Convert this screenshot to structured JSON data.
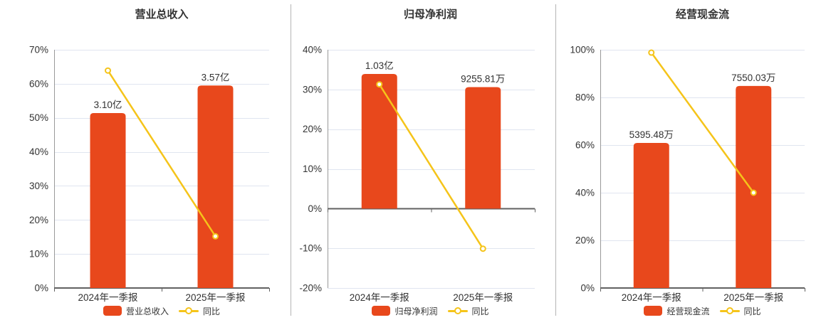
{
  "page": {
    "background": "#ffffff"
  },
  "colors": {
    "bar": "#e8481c",
    "line": "#f5c41a",
    "marker_fill": "#ffffff",
    "grid": "#e0e5f0",
    "zero_axis": "#616161",
    "y_axis_line": "#999999",
    "text": "#333333",
    "divider": "#b5b5b5"
  },
  "chart_data": [
    {
      "type": "bar",
      "title": "营业总收入",
      "categories": [
        "2024年一季报",
        "2025年一季报"
      ],
      "bar_series": {
        "name": "营业总收入",
        "display_values": [
          "3.10亿",
          "3.57亿"
        ],
        "top_on_percent_axis": [
          51.4,
          59.5
        ]
      },
      "line_series": {
        "name": "同比",
        "values_percent": [
          63.9,
          15.2
        ]
      },
      "y_axis": {
        "min": 0,
        "max": 70,
        "step": 10,
        "unit": "%"
      },
      "grid": true,
      "legend_position": "bottom"
    },
    {
      "type": "bar",
      "title": "归母净利润",
      "categories": [
        "2024年一季报",
        "2025年一季报"
      ],
      "bar_series": {
        "name": "归母净利润",
        "display_values": [
          "1.03亿",
          "9255.81万"
        ],
        "top_on_percent_axis": [
          33.9,
          30.6
        ]
      },
      "line_series": {
        "name": "同比",
        "values_percent": [
          31.3,
          -10.1
        ]
      },
      "y_axis": {
        "min": -20,
        "max": 40,
        "step": 10,
        "unit": "%"
      },
      "grid": true,
      "legend_position": "bottom"
    },
    {
      "type": "bar",
      "title": "经营现金流",
      "categories": [
        "2024年一季报",
        "2025年一季报"
      ],
      "bar_series": {
        "name": "经营现金流",
        "display_values": [
          "5395.48万",
          "7550.03万"
        ],
        "top_on_percent_axis": [
          60.9,
          84.8
        ]
      },
      "line_series": {
        "name": "同比",
        "values_percent": [
          98.8,
          40.0
        ]
      },
      "y_axis": {
        "min": 0,
        "max": 100,
        "step": 20,
        "unit": "%"
      },
      "grid": true,
      "legend_position": "bottom"
    }
  ]
}
